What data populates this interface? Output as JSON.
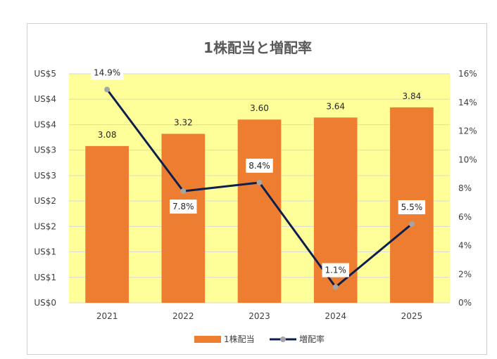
{
  "chart_data": {
    "type": "bar",
    "title": "1株配当と増配率",
    "categories": [
      "2021",
      "2022",
      "2023",
      "2024",
      "2025"
    ],
    "series": [
      {
        "name": "1株配当",
        "type": "bar",
        "axis": "left",
        "values": [
          3.08,
          3.32,
          3.6,
          3.64,
          3.84
        ],
        "labels": [
          "3.08",
          "3.32",
          "3.60",
          "3.64",
          "3.84"
        ],
        "color": "#ED7D31"
      },
      {
        "name": "増配率",
        "type": "line",
        "axis": "right",
        "values": [
          14.9,
          7.8,
          8.4,
          1.1,
          5.5
        ],
        "labels": [
          "14.9%",
          "7.8%",
          "8.4%",
          "1.1%",
          "5.5%"
        ],
        "color": "#0D1F4E",
        "marker_color": "#A5A5A5"
      }
    ],
    "y_left": {
      "ylim": [
        0,
        4.5
      ],
      "tick_labels": [
        "US$0",
        "US$1",
        "US$1",
        "US$2",
        "US$2",
        "US$3",
        "US$3",
        "US$4",
        "US$4",
        "US$5"
      ]
    },
    "y_right": {
      "ylim": [
        0,
        16
      ],
      "tick_labels": [
        "0%",
        "2%",
        "4%",
        "6%",
        "8%",
        "10%",
        "12%",
        "14%",
        "16%"
      ]
    },
    "plot_background": "#FFFF99",
    "grid": true,
    "legend_position": "bottom"
  }
}
